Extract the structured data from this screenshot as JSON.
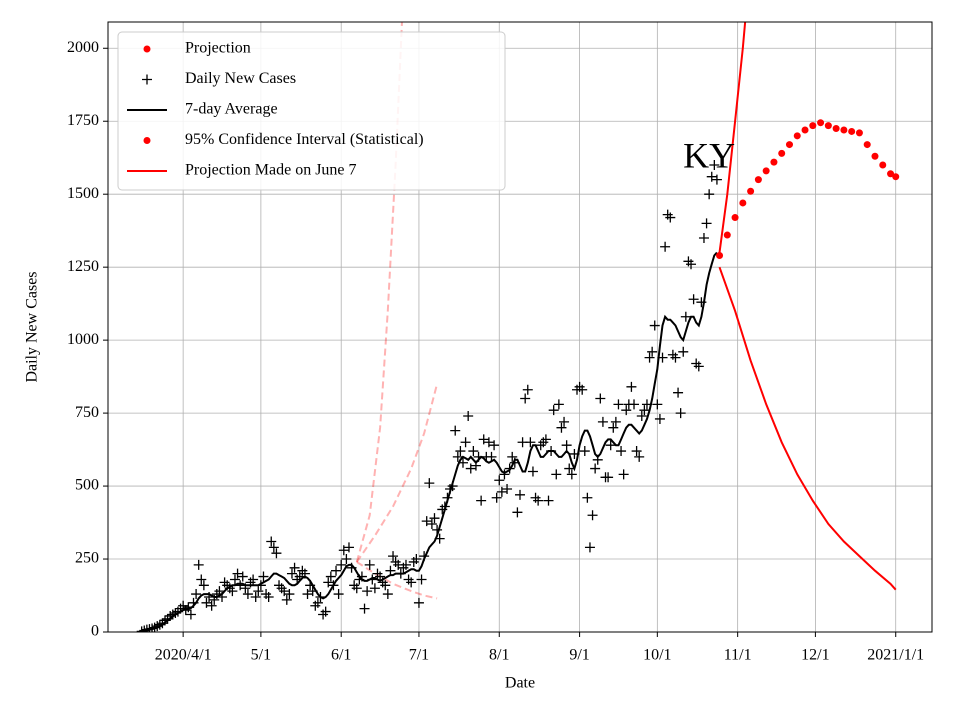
{
  "chart_data": {
    "type": "line",
    "annotation": "KY",
    "annotation_at": {
      "x": "2020-10-21",
      "y": 1620
    },
    "xlabel": "Date",
    "ylabel": "Daily New Cases",
    "xlim": [
      "2020-03-03",
      "2021-01-15"
    ],
    "ylim": [
      0,
      2090
    ],
    "xticks": [
      {
        "value": "2020-04-01",
        "label": "2020/4/1"
      },
      {
        "value": "2020-05-01",
        "label": "5/1"
      },
      {
        "value": "2020-06-01",
        "label": "6/1"
      },
      {
        "value": "2020-07-01",
        "label": "7/1"
      },
      {
        "value": "2020-08-01",
        "label": "8/1"
      },
      {
        "value": "2020-09-01",
        "label": "9/1"
      },
      {
        "value": "2020-10-01",
        "label": "10/1"
      },
      {
        "value": "2020-11-01",
        "label": "11/1"
      },
      {
        "value": "2020-12-01",
        "label": "12/1"
      },
      {
        "value": "2021-01-01",
        "label": "2021/1/1"
      }
    ],
    "yticks": [
      0,
      250,
      500,
      750,
      1000,
      1250,
      1500,
      1750,
      2000
    ],
    "grid": true,
    "legend": "upper left",
    "series": [
      {
        "name": "Projection",
        "color": "#ff0000",
        "style": "dots",
        "x": [
          "2020-10-25",
          "2020-10-28",
          "2020-10-31",
          "2020-11-03",
          "2020-11-06",
          "2020-11-09",
          "2020-11-12",
          "2020-11-15",
          "2020-11-18",
          "2020-11-21",
          "2020-11-24",
          "2020-11-27",
          "2020-11-30",
          "2020-12-03",
          "2020-12-06",
          "2020-12-09",
          "2020-12-12",
          "2020-12-15",
          "2020-12-18",
          "2020-12-21",
          "2020-12-24",
          "2020-12-27",
          "2020-12-30",
          "2021-01-01"
        ],
        "values": [
          1290,
          1360,
          1420,
          1470,
          1510,
          1550,
          1580,
          1610,
          1640,
          1670,
          1700,
          1720,
          1735,
          1745,
          1735,
          1725,
          1720,
          1715,
          1710,
          1670,
          1630,
          1600,
          1570,
          1560
        ]
      },
      {
        "name": "Daily New Cases",
        "color": "#000000",
        "style": "plus",
        "x": [
          "2020-03-16",
          "2020-03-17",
          "2020-03-18",
          "2020-03-19",
          "2020-03-20",
          "2020-03-21",
          "2020-03-22",
          "2020-03-23",
          "2020-03-24",
          "2020-03-25",
          "2020-03-26",
          "2020-03-27",
          "2020-03-28",
          "2020-03-29",
          "2020-03-30",
          "2020-03-31",
          "2020-04-01",
          "2020-04-02",
          "2020-04-03",
          "2020-04-04",
          "2020-04-05",
          "2020-04-06",
          "2020-04-07",
          "2020-04-08",
          "2020-04-09",
          "2020-04-10",
          "2020-04-11",
          "2020-04-12",
          "2020-04-13",
          "2020-04-14",
          "2020-04-15",
          "2020-04-16",
          "2020-04-17",
          "2020-04-18",
          "2020-04-19",
          "2020-04-20",
          "2020-04-21",
          "2020-04-22",
          "2020-04-23",
          "2020-04-24",
          "2020-04-25",
          "2020-04-26",
          "2020-04-27",
          "2020-04-28",
          "2020-04-29",
          "2020-04-30",
          "2020-05-01",
          "2020-05-02",
          "2020-05-03",
          "2020-05-04",
          "2020-05-05",
          "2020-05-06",
          "2020-05-07",
          "2020-05-08",
          "2020-05-09",
          "2020-05-10",
          "2020-05-11",
          "2020-05-12",
          "2020-05-13",
          "2020-05-14",
          "2020-05-15",
          "2020-05-16",
          "2020-05-17",
          "2020-05-18",
          "2020-05-19",
          "2020-05-20",
          "2020-05-21",
          "2020-05-22",
          "2020-05-23",
          "2020-05-24",
          "2020-05-25",
          "2020-05-26",
          "2020-05-27",
          "2020-05-28",
          "2020-05-29",
          "2020-05-30",
          "2020-05-31",
          "2020-06-01",
          "2020-06-02",
          "2020-06-03",
          "2020-06-04",
          "2020-06-05",
          "2020-06-06",
          "2020-06-07",
          "2020-06-08",
          "2020-06-09",
          "2020-06-10",
          "2020-06-11",
          "2020-06-12",
          "2020-06-13",
          "2020-06-14",
          "2020-06-15",
          "2020-06-16",
          "2020-06-17",
          "2020-06-18",
          "2020-06-19",
          "2020-06-20",
          "2020-06-21",
          "2020-06-22",
          "2020-06-23",
          "2020-06-24",
          "2020-06-25",
          "2020-06-26",
          "2020-06-27",
          "2020-06-28",
          "2020-06-29",
          "2020-06-30",
          "2020-07-01",
          "2020-07-02",
          "2020-07-03",
          "2020-07-04",
          "2020-07-05",
          "2020-07-06",
          "2020-07-07",
          "2020-07-08",
          "2020-07-09",
          "2020-07-10",
          "2020-07-11",
          "2020-07-12",
          "2020-07-13",
          "2020-07-14",
          "2020-07-15",
          "2020-07-16",
          "2020-07-17",
          "2020-07-18",
          "2020-07-19",
          "2020-07-20",
          "2020-07-21",
          "2020-07-22",
          "2020-07-23",
          "2020-07-24",
          "2020-07-25",
          "2020-07-26",
          "2020-07-27",
          "2020-07-28",
          "2020-07-29",
          "2020-07-30",
          "2020-07-31",
          "2020-08-01",
          "2020-08-02",
          "2020-08-03",
          "2020-08-04",
          "2020-08-05",
          "2020-08-06",
          "2020-08-07",
          "2020-08-08",
          "2020-08-09",
          "2020-08-10",
          "2020-08-11",
          "2020-08-12",
          "2020-08-13",
          "2020-08-14",
          "2020-08-15",
          "2020-08-16",
          "2020-08-17",
          "2020-08-18",
          "2020-08-19",
          "2020-08-20",
          "2020-08-21",
          "2020-08-22",
          "2020-08-23",
          "2020-08-24",
          "2020-08-25",
          "2020-08-26",
          "2020-08-27",
          "2020-08-28",
          "2020-08-29",
          "2020-08-30",
          "2020-08-31",
          "2020-09-01",
          "2020-09-02",
          "2020-09-03",
          "2020-09-04",
          "2020-09-05",
          "2020-09-06",
          "2020-09-07",
          "2020-09-08",
          "2020-09-09",
          "2020-09-10",
          "2020-09-11",
          "2020-09-12",
          "2020-09-13",
          "2020-09-14",
          "2020-09-15",
          "2020-09-16",
          "2020-09-17",
          "2020-09-18",
          "2020-09-19",
          "2020-09-20",
          "2020-09-21",
          "2020-09-22",
          "2020-09-23",
          "2020-09-24",
          "2020-09-25",
          "2020-09-26",
          "2020-09-27",
          "2020-09-28",
          "2020-09-29",
          "2020-09-30",
          "2020-10-01",
          "2020-10-02",
          "2020-10-03",
          "2020-10-04",
          "2020-10-05",
          "2020-10-06",
          "2020-10-07",
          "2020-10-08",
          "2020-10-09",
          "2020-10-10",
          "2020-10-11",
          "2020-10-12",
          "2020-10-13",
          "2020-10-14",
          "2020-10-15",
          "2020-10-16",
          "2020-10-17",
          "2020-10-18",
          "2020-10-19",
          "2020-10-20",
          "2020-10-21",
          "2020-10-22",
          "2020-10-23",
          "2020-10-24"
        ],
        "values": [
          2,
          5,
          8,
          10,
          12,
          15,
          20,
          25,
          30,
          40,
          45,
          55,
          60,
          65,
          70,
          80,
          90,
          75,
          85,
          60,
          100,
          130,
          230,
          180,
          160,
          100,
          120,
          90,
          110,
          130,
          140,
          120,
          170,
          160,
          150,
          140,
          180,
          200,
          160,
          190,
          150,
          130,
          170,
          180,
          120,
          140,
          160,
          190,
          130,
          120,
          310,
          290,
          270,
          160,
          150,
          140,
          110,
          130,
          200,
          220,
          180,
          190,
          210,
          200,
          130,
          160,
          140,
          90,
          100,
          120,
          60,
          70,
          170,
          190,
          160,
          210,
          130,
          230,
          280,
          250,
          290,
          220,
          160,
          150,
          180,
          190,
          80,
          140,
          230,
          180,
          150,
          200,
          190,
          170,
          160,
          130,
          210,
          260,
          240,
          230,
          200,
          220,
          230,
          180,
          170,
          240,
          250,
          100,
          180,
          260,
          380,
          510,
          370,
          390,
          350,
          320,
          420,
          430,
          460,
          490,
          500,
          690,
          600,
          620,
          580,
          650,
          740,
          560,
          620,
          570,
          600,
          450,
          660,
          600,
          650,
          600,
          640,
          460,
          520,
          480,
          540,
          490,
          560,
          600,
          580,
          410,
          470,
          650,
          800,
          830,
          650,
          550,
          460,
          450,
          640,
          650,
          660,
          450,
          620,
          760,
          540,
          780,
          700,
          720,
          640,
          560,
          540,
          610,
          830,
          840,
          830,
          620,
          460,
          290,
          400,
          560,
          590,
          800,
          720,
          530,
          530,
          640,
          700,
          720,
          780,
          620,
          540,
          760,
          780,
          840,
          780,
          620,
          600,
          740,
          760,
          780,
          940,
          960,
          1050,
          780,
          730,
          940,
          1320,
          1430,
          1420,
          950,
          940,
          820,
          750,
          960,
          1080,
          1270,
          1260,
          1140,
          920,
          910,
          1130,
          1350,
          1400,
          1500,
          1560,
          1600,
          1550
        ]
      },
      {
        "name": "7-day Average",
        "color": "#000000",
        "style": "line",
        "x_from": 1,
        "values": [
          0,
          2,
          5,
          8,
          10,
          13,
          17,
          22,
          27,
          33,
          40,
          47,
          53,
          60,
          65,
          70,
          75,
          78,
          80,
          82,
          90,
          100,
          115,
          125,
          130,
          130,
          130,
          125,
          120,
          120,
          125,
          130,
          140,
          150,
          155,
          160,
          160,
          165,
          165,
          165,
          160,
          160,
          160,
          160,
          160,
          160,
          165,
          170,
          175,
          180,
          190,
          200,
          200,
          195,
          190,
          185,
          175,
          165,
          160,
          160,
          165,
          175,
          185,
          190,
          185,
          175,
          160,
          145,
          130,
          120,
          115,
          120,
          130,
          145,
          160,
          175,
          185,
          195,
          210,
          225,
          230,
          230,
          220,
          205,
          190,
          180,
          175,
          175,
          180,
          185,
          185,
          180,
          175,
          180,
          185,
          190,
          195,
          195,
          200,
          200,
          200,
          200,
          205,
          210,
          215,
          215,
          210,
          210,
          225,
          250,
          270,
          290,
          300,
          310,
          330,
          360,
          390,
          420,
          450,
          480,
          510,
          540,
          570,
          590,
          600,
          595,
          590,
          600,
          590,
          580,
          590,
          600,
          595,
          585,
          580,
          585,
          590,
          580,
          565,
          550,
          545,
          550,
          555,
          570,
          590,
          590,
          570,
          550,
          550,
          580,
          620,
          640,
          640,
          620,
          600,
          600,
          610,
          620,
          620,
          620,
          610,
          600,
          600,
          610,
          620,
          610,
          580,
          560,
          590,
          640,
          670,
          690,
          690,
          670,
          640,
          610,
          600,
          610,
          630,
          650,
          660,
          660,
          650,
          640,
          640,
          660,
          680,
          700,
          710,
          710,
          700,
          690,
          680,
          690,
          710,
          730,
          760,
          800,
          850,
          900,
          980,
          1050,
          1080,
          1070,
          1070,
          1060,
          1050,
          1030,
          1010,
          1000,
          1030,
          1060,
          1080,
          1080,
          1060,
          1050,
          1080,
          1130,
          1190,
          1230,
          1260,
          1290,
          1300
        ]
      },
      {
        "name": "95% Confidence Interval (Statistical)",
        "color": "#ff0000",
        "style": "lines",
        "legend_marker": "dot",
        "lines": [
          {
            "x": [
              "2020-10-25",
              "2020-10-28",
              "2020-10-31",
              "2020-11-03",
              "2020-11-05"
            ],
            "values": [
              1300,
              1500,
              1750,
              2000,
              2200
            ]
          },
          {
            "x": [
              "2020-10-25",
              "2020-10-31",
              "2020-11-06",
              "2020-11-12",
              "2020-11-18",
              "2020-11-24",
              "2020-11-30",
              "2020-12-06",
              "2020-12-12",
              "2020-12-18",
              "2020-12-24",
              "2020-12-30",
              "2021-01-01"
            ],
            "values": [
              1250,
              1100,
              930,
              780,
              650,
              540,
              450,
              370,
              310,
              260,
              210,
              165,
              145
            ]
          }
        ]
      },
      {
        "name": "Projection Made on June 7",
        "color": "#ff0000",
        "style": "lines",
        "dashed": true,
        "alpha": 0.3,
        "lines": [
          {
            "x": [
              "2020-06-07",
              "2020-06-12",
              "2020-06-16",
              "2020-06-19",
              "2020-06-22",
              "2020-06-25"
            ],
            "values": [
              240,
              400,
              700,
              1100,
              1600,
              2200
            ]
          },
          {
            "x": [
              "2020-06-07",
              "2020-06-14",
              "2020-06-21",
              "2020-06-28",
              "2020-07-03",
              "2020-07-08"
            ],
            "values": [
              240,
              330,
              430,
              560,
              680,
              850
            ]
          },
          {
            "x": [
              "2020-06-07",
              "2020-06-14",
              "2020-06-21",
              "2020-06-28",
              "2020-07-03",
              "2020-07-08"
            ],
            "values": [
              240,
              200,
              165,
              140,
              125,
              115
            ]
          }
        ]
      }
    ]
  }
}
